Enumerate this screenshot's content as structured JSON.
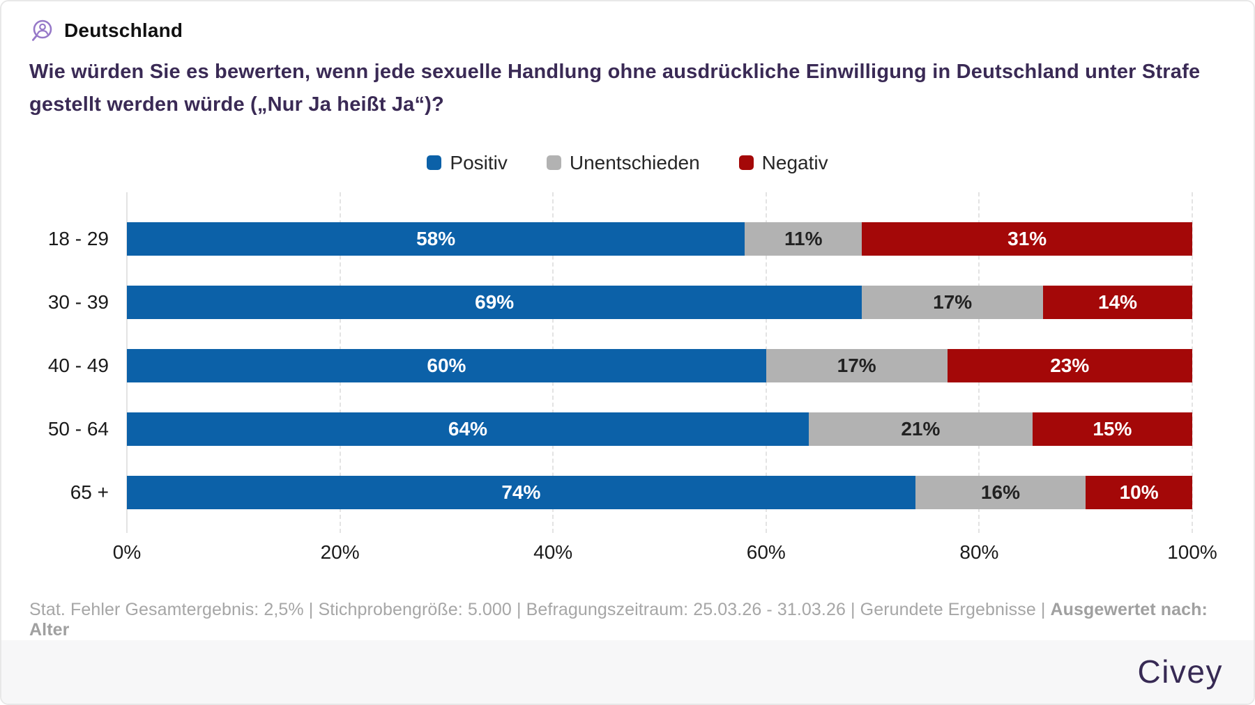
{
  "header": {
    "region": "Deutschland"
  },
  "question": "Wie würden Sie es bewerten, wenn jede sexuelle Handlung ohne ausdrückliche Einwilligung in Deutschland unter Strafe gestellt werden würde („Nur Ja heißt Ja“)?",
  "legend": {
    "items": [
      {
        "label": "Positiv",
        "color": "#0c61a8"
      },
      {
        "label": "Unentschieden",
        "color": "#b2b2b2"
      },
      {
        "label": "Negativ",
        "color": "#a40808"
      }
    ]
  },
  "chart_data": {
    "type": "bar",
    "orientation": "horizontal",
    "stacked": true,
    "unit": "%",
    "categories": [
      "18 - 29",
      "30 - 39",
      "40 - 49",
      "50 - 64",
      "65 +"
    ],
    "series": [
      {
        "name": "Positiv",
        "key": "positiv",
        "color": "#0c61a8",
        "value_text_color": "#ffffff",
        "values": [
          58,
          69,
          60,
          64,
          74
        ]
      },
      {
        "name": "Unentschieden",
        "key": "unentschieden",
        "color": "#b2b2b2",
        "value_text_color": "#222222",
        "values": [
          11,
          17,
          17,
          21,
          16
        ]
      },
      {
        "name": "Negativ",
        "key": "negativ",
        "color": "#a40808",
        "value_text_color": "#ffffff",
        "values": [
          31,
          14,
          23,
          15,
          10
        ]
      }
    ],
    "xlim": [
      0,
      100
    ],
    "x_ticks": [
      "0%",
      "20%",
      "40%",
      "60%",
      "80%",
      "100%"
    ],
    "grid": "vertical-dashed",
    "legend_position": "top-center"
  },
  "footer": {
    "text_regular": "Stat. Fehler Gesamtergebnis: 2,5% | Stichprobengröße: 5.000 | Befragungszeitraum: 25.03.26 - 31.03.26 | Gerundete Ergebnisse | ",
    "text_bold": "Ausgewertet nach: Alter"
  },
  "branding": {
    "logo_text": "Civey",
    "logo_color": "#372a54",
    "accent_purple": "#9678c8"
  }
}
